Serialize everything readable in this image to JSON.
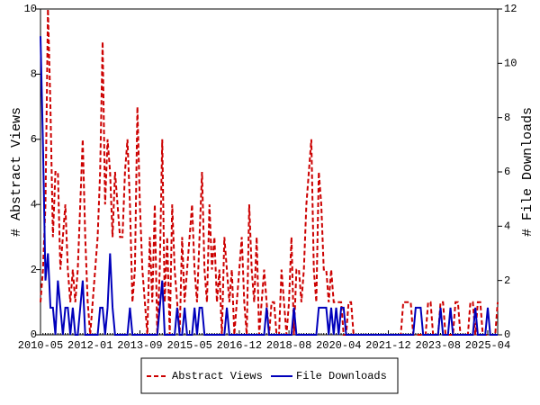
{
  "chart_data": {
    "type": "line",
    "y_label": "# Abstract Views",
    "y2_label": "# File Downloads",
    "categories": [
      "2010-05",
      null,
      null,
      null,
      null,
      null,
      null,
      null,
      null,
      null,
      null,
      null,
      null,
      null,
      null,
      null,
      null,
      null,
      null,
      null,
      "2012-01",
      null,
      null,
      null,
      null,
      null,
      null,
      null,
      null,
      null,
      null,
      null,
      null,
      null,
      null,
      null,
      null,
      null,
      null,
      null,
      "2013-09",
      null,
      null,
      null,
      null,
      null,
      null,
      null,
      null,
      null,
      null,
      null,
      null,
      null,
      null,
      null,
      null,
      null,
      null,
      null,
      "2015-05",
      null,
      null,
      null,
      null,
      null,
      null,
      null,
      null,
      null,
      null,
      null,
      null,
      null,
      null,
      null,
      null,
      null,
      null,
      null,
      "2016-12",
      null,
      null,
      null,
      null,
      null,
      null,
      null,
      null,
      null,
      null,
      null,
      null,
      null,
      null,
      null,
      null,
      null,
      null,
      null,
      "2018-08",
      null,
      null,
      null,
      null,
      null,
      null,
      null,
      null,
      null,
      null,
      null,
      null,
      null,
      null,
      null,
      null,
      null,
      null,
      null,
      "2020-04",
      null,
      null,
      null,
      null,
      null,
      null,
      null,
      null,
      null,
      null,
      null,
      null,
      null,
      null,
      null,
      null,
      null,
      null,
      null,
      "2021-12",
      null,
      null,
      null,
      null,
      null,
      null,
      null,
      null,
      null,
      null,
      null,
      null,
      null,
      null,
      null,
      null,
      null,
      null,
      null,
      "2023-08",
      null,
      null,
      null,
      null,
      null,
      null,
      null,
      null,
      null,
      null,
      null,
      null,
      null,
      null,
      null,
      null,
      null,
      null,
      null,
      "2025-04",
      null,
      null,
      null,
      null
    ],
    "series": [
      {
        "name": "Abstract Views",
        "color": "#cc0000",
        "dash": "dashed",
        "axis": "y",
        "values": [
          1,
          2,
          4,
          10,
          7,
          3,
          5,
          5,
          2,
          3,
          4,
          2,
          1,
          2,
          1,
          2,
          4,
          6,
          3,
          1,
          0,
          1,
          2,
          3,
          5,
          9,
          4,
          6,
          5,
          3,
          5,
          4,
          3,
          3,
          5,
          6,
          4,
          1,
          2,
          7,
          4,
          2,
          1,
          0,
          3,
          1,
          4,
          0,
          2,
          6,
          1,
          3,
          0,
          4,
          2,
          1,
          0,
          3,
          1,
          2,
          3,
          4,
          2,
          1,
          3,
          5,
          2,
          1,
          4,
          2,
          3,
          1,
          2,
          0,
          3,
          2,
          1,
          2,
          0,
          1,
          2,
          3,
          1,
          0,
          4,
          2,
          1,
          3,
          0,
          1,
          2,
          1,
          0,
          1,
          1,
          0,
          0,
          2,
          1,
          0,
          1,
          3,
          0,
          2,
          2,
          1,
          2,
          4,
          5,
          6,
          2,
          1,
          5,
          4,
          2,
          2,
          1,
          2,
          1,
          1,
          1,
          1,
          0,
          0,
          1,
          1,
          0,
          0,
          0,
          0,
          0,
          0,
          0,
          0,
          0,
          0,
          0,
          0,
          0,
          0,
          0,
          0,
          0,
          0,
          0,
          0,
          1,
          1,
          1,
          1,
          0,
          0,
          0,
          0,
          0,
          0,
          1,
          1,
          0,
          0,
          0,
          1,
          1,
          0,
          0,
          0,
          0,
          1,
          1,
          0,
          0,
          0,
          0,
          1,
          1,
          0,
          1,
          1,
          0,
          0,
          0,
          0,
          0,
          0,
          1
        ]
      },
      {
        "name": "File Downloads",
        "color": "#0000bb",
        "dash": "solid",
        "axis": "y2",
        "values": [
          11,
          7,
          2,
          3,
          1,
          1,
          0,
          2,
          1,
          0,
          1,
          1,
          0,
          1,
          0,
          0,
          1,
          2,
          0,
          0,
          0,
          0,
          0,
          0,
          1,
          1,
          0,
          1,
          3,
          1,
          0,
          0,
          0,
          0,
          0,
          0,
          1,
          0,
          0,
          0,
          0,
          0,
          0,
          0,
          0,
          0,
          0,
          0,
          1,
          2,
          0,
          0,
          0,
          0,
          0,
          1,
          0,
          0,
          1,
          0,
          0,
          0,
          1,
          0,
          1,
          1,
          0,
          0,
          0,
          0,
          0,
          0,
          0,
          0,
          0,
          1,
          0,
          0,
          0,
          0,
          0,
          0,
          0,
          0,
          0,
          0,
          0,
          0,
          0,
          0,
          0,
          1,
          0,
          0,
          0,
          0,
          0,
          0,
          0,
          0,
          0,
          0,
          1,
          0,
          0,
          0,
          0,
          0,
          0,
          0,
          0,
          0,
          1,
          1,
          1,
          1,
          0,
          1,
          0,
          1,
          0,
          1,
          1,
          0,
          0,
          0,
          0,
          0,
          0,
          0,
          0,
          0,
          0,
          0,
          0,
          0,
          0,
          0,
          0,
          0,
          0,
          0,
          0,
          0,
          0,
          0,
          0,
          0,
          0,
          0,
          0,
          1,
          1,
          1,
          0,
          0,
          0,
          0,
          0,
          0,
          0,
          1,
          0,
          0,
          0,
          1,
          0,
          0,
          0,
          0,
          0,
          0,
          0,
          0,
          0,
          1,
          0,
          0,
          0,
          0,
          1,
          0,
          0,
          0,
          0
        ]
      }
    ],
    "ylim": [
      0,
      10
    ],
    "yticks": [
      0,
      2,
      4,
      6,
      8,
      10
    ],
    "y2lim": [
      0,
      12
    ],
    "y2ticks": [
      0,
      2,
      4,
      6,
      8,
      10,
      12
    ],
    "grid": false,
    "legend": "bottom"
  }
}
